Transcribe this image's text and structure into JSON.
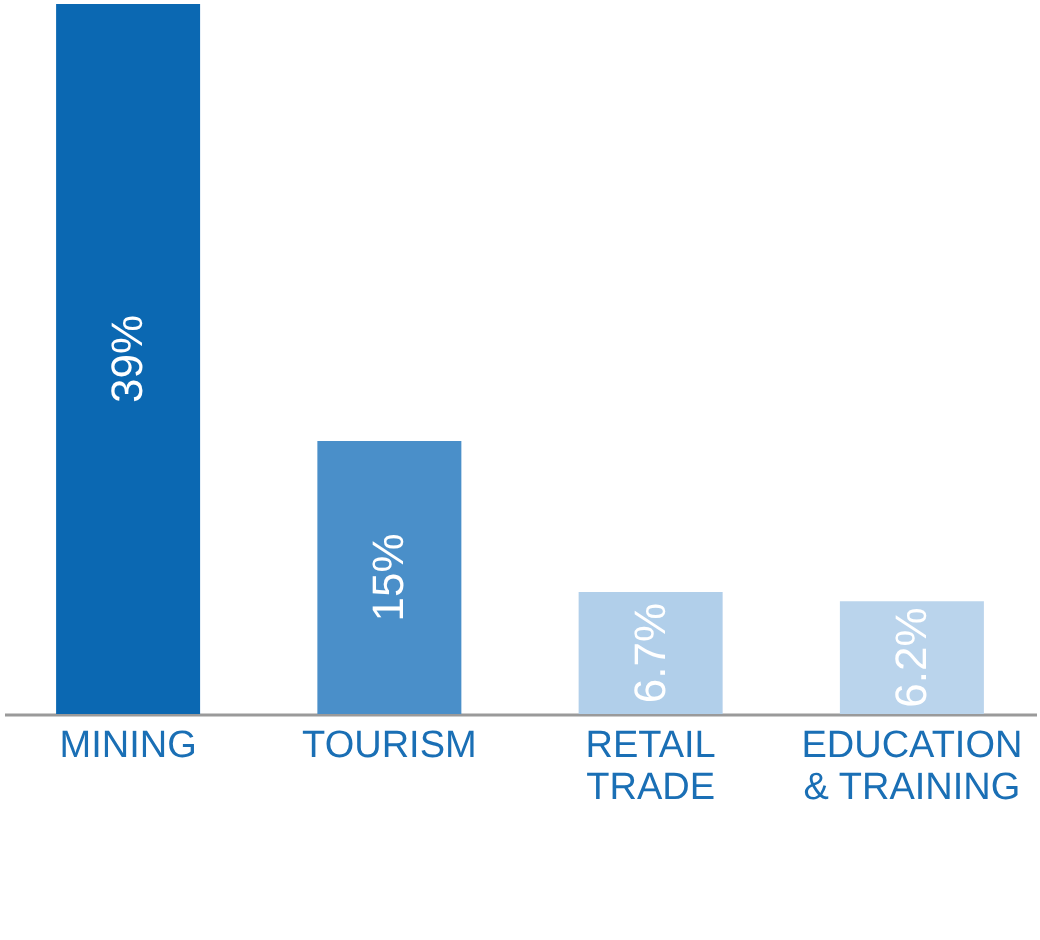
{
  "chart_data": {
    "type": "bar",
    "categories": [
      "MINING",
      "TOURISM",
      "RETAIL TRADE",
      "EDUCATION & TRAINING"
    ],
    "values": [
      39,
      15,
      6.7,
      6.2
    ],
    "colors": [
      "#0b68b2",
      "#4a8fc9",
      "#b1cfea",
      "#bad4ec"
    ],
    "value_labels": [
      "39%",
      "15%",
      "6.7%",
      "6.2%"
    ]
  }
}
